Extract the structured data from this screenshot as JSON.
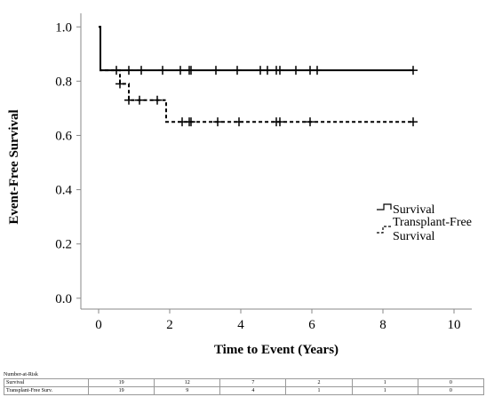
{
  "chart_data": {
    "type": "line",
    "xlabel": "Time to Event (Years)",
    "ylabel": "Event-Free Survival",
    "xlim": [
      -0.5,
      10.5
    ],
    "ylim": [
      -0.04,
      1.05
    ],
    "xticks": [
      0,
      2,
      4,
      6,
      8,
      10
    ],
    "yticks": [
      0.0,
      0.2,
      0.4,
      0.6,
      0.8,
      1.0
    ],
    "xtick_labels": [
      "0",
      "2",
      "4",
      "6",
      "8",
      "10"
    ],
    "ytick_labels": [
      "0.0",
      "0.2",
      "0.4",
      "0.6",
      "0.8",
      "1.0"
    ],
    "grid": false,
    "legend_position": "right",
    "series": [
      {
        "name": "Survival",
        "style": "solid",
        "color": "#000000",
        "steps": [
          [
            0,
            1.0
          ],
          [
            0.05,
            0.84
          ],
          [
            8.85,
            0.84
          ]
        ],
        "censored": [
          0.5,
          0.85,
          1.2,
          1.8,
          2.3,
          2.55,
          2.6,
          3.3,
          3.9,
          4.55,
          4.75,
          5.0,
          5.1,
          5.55,
          5.95,
          6.15,
          8.85
        ]
      },
      {
        "name": "Transplant-Free Survival",
        "style": "dashed",
        "color": "#000000",
        "steps": [
          [
            0,
            1.0
          ],
          [
            0.05,
            0.84
          ],
          [
            0.6,
            0.79
          ],
          [
            0.85,
            0.73
          ],
          [
            1.9,
            0.65
          ],
          [
            8.85,
            0.65
          ]
        ],
        "censored": [
          0.6,
          0.85,
          1.15,
          1.65,
          2.35,
          2.55,
          2.6,
          3.35,
          3.95,
          5.0,
          5.1,
          5.95,
          8.85
        ]
      }
    ]
  },
  "legend": {
    "survival": "Survival",
    "tfs_line1": "Transplant-Free",
    "tfs_line2": "Survival"
  },
  "risk_table": {
    "title": "Number-at-Risk",
    "rows": [
      {
        "label": "Survival",
        "values": [
          "19",
          "12",
          "7",
          "2",
          "1",
          "0"
        ]
      },
      {
        "label": "Transplant-Free Surv.",
        "values": [
          "19",
          "9",
          "4",
          "1",
          "1",
          "0"
        ]
      }
    ]
  }
}
